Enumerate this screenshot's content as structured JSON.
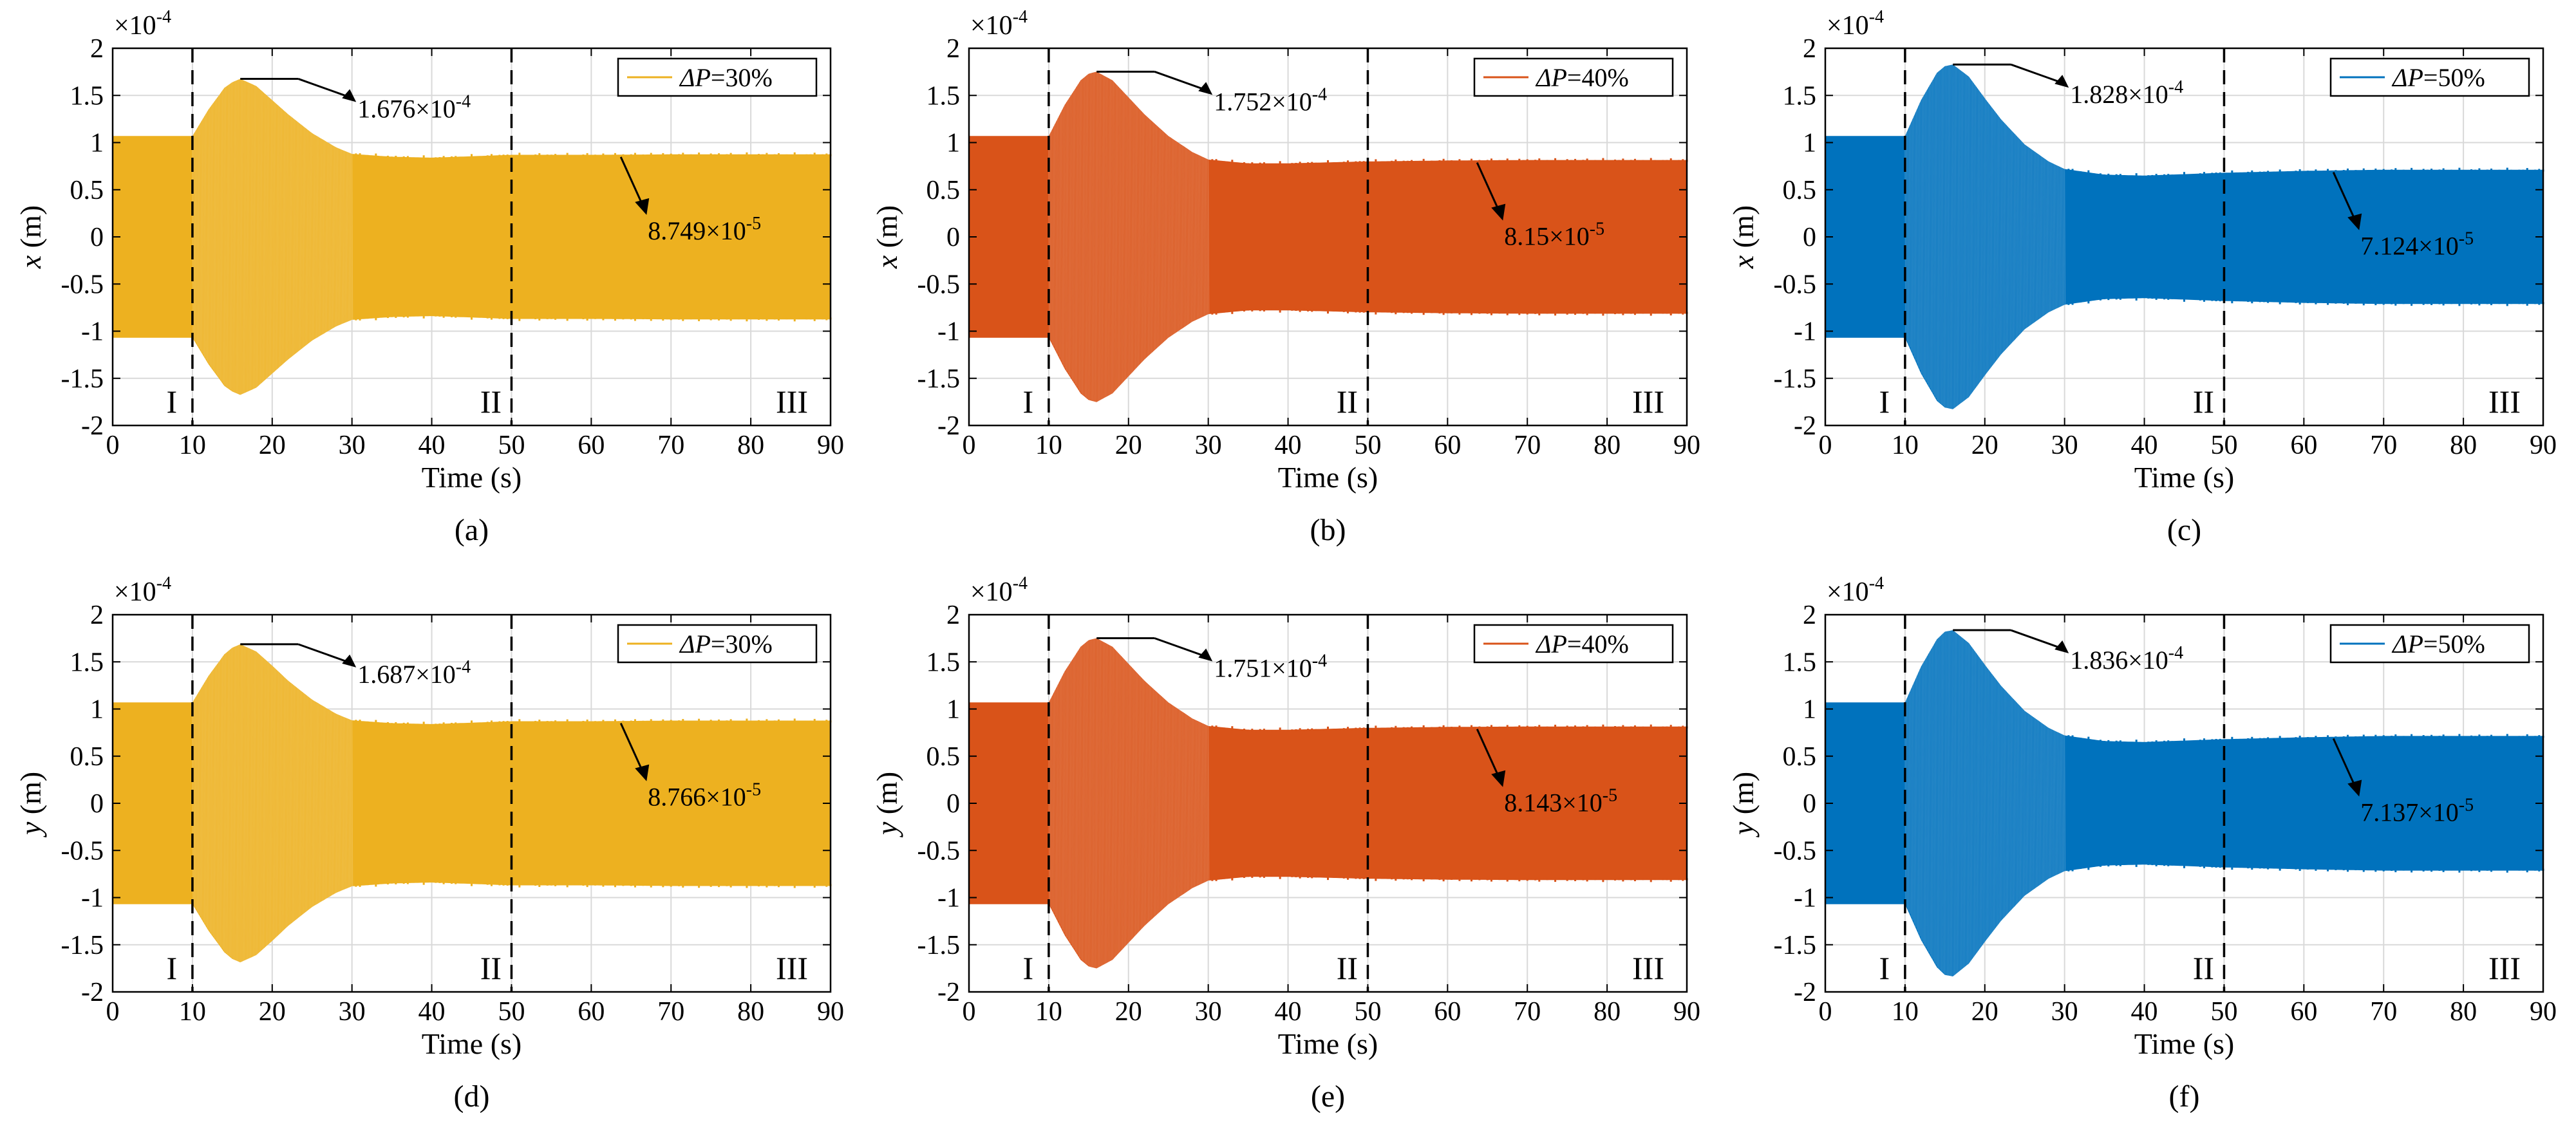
{
  "figure": {
    "panels": [
      {
        "label": "(a)",
        "color": "#EDB120",
        "chart_data": {
          "type": "area",
          "xlabel": "Time (s)",
          "ylabel_var": "x",
          "ylabel_unit": " (m)",
          "exponent_base": "×10",
          "exponent_power": "-4",
          "xlim": [
            0,
            90
          ],
          "ylim": [
            -2,
            2
          ],
          "xticks": [
            "0",
            "10",
            "20",
            "30",
            "40",
            "50",
            "60",
            "70",
            "80",
            "90"
          ],
          "yticks": [
            "2",
            "1.5",
            "1",
            "0.5",
            "0",
            "-0.5",
            "-1",
            "-1.5",
            "-2"
          ],
          "grid": true,
          "legend": {
            "prefix": "ΔP",
            "suffix": "=30%",
            "position": "top-right"
          },
          "region_labels": [
            "I",
            "II",
            "III"
          ],
          "vlines": [
            10,
            50
          ],
          "series": [
            {
              "x": [
                0,
                10,
                12,
                14,
                15,
                16,
                18,
                20,
                22,
                25,
                28,
                30,
                35,
                40,
                50,
                60,
                70,
                80,
                90
              ],
              "amplitude": [
                1.07,
                1.07,
                1.35,
                1.58,
                1.64,
                1.676,
                1.6,
                1.45,
                1.3,
                1.1,
                0.95,
                0.88,
                0.85,
                0.84,
                0.87,
                0.87,
                0.875,
                0.875,
                0.875
              ]
            }
          ],
          "annotations": [
            {
              "mant": "1.676",
              "base": "×10",
              "exp": "-4",
              "x": 16,
              "y": 1.676,
              "kind": "peak"
            },
            {
              "mant": "8.749",
              "base": "×10",
              "exp": "-5",
              "x": 70,
              "y": 0.8749,
              "kind": "steady"
            }
          ]
        }
      },
      {
        "label": "(b)",
        "color": "#D95319",
        "chart_data": {
          "type": "area",
          "xlabel": "Time (s)",
          "ylabel_var": "x",
          "ylabel_unit": " (m)",
          "exponent_base": "×10",
          "exponent_power": "-4",
          "xlim": [
            0,
            90
          ],
          "ylim": [
            -2,
            2
          ],
          "xticks": [
            "0",
            "10",
            "20",
            "30",
            "40",
            "50",
            "60",
            "70",
            "80",
            "90"
          ],
          "yticks": [
            "2",
            "1.5",
            "1",
            "0.5",
            "0",
            "-0.5",
            "-1",
            "-1.5",
            "-2"
          ],
          "grid": true,
          "legend": {
            "prefix": "ΔP",
            "suffix": "=40%",
            "position": "top-right"
          },
          "region_labels": [
            "I",
            "II",
            "III"
          ],
          "vlines": [
            10,
            50
          ],
          "series": [
            {
              "x": [
                0,
                10,
                12,
                14,
                15,
                16,
                18,
                20,
                22,
                25,
                28,
                30,
                35,
                40,
                50,
                60,
                70,
                80,
                90
              ],
              "amplitude": [
                1.07,
                1.07,
                1.4,
                1.66,
                1.73,
                1.752,
                1.66,
                1.48,
                1.3,
                1.07,
                0.9,
                0.82,
                0.78,
                0.78,
                0.8,
                0.81,
                0.815,
                0.815,
                0.815
              ]
            }
          ],
          "annotations": [
            {
              "mant": "1.752",
              "base": "×10",
              "exp": "-4",
              "x": 16,
              "y": 1.752,
              "kind": "peak"
            },
            {
              "mant": "8.15",
              "base": "×10",
              "exp": "-5",
              "x": 70,
              "y": 0.815,
              "kind": "steady"
            }
          ]
        }
      },
      {
        "label": "(c)",
        "color": "#0072BD",
        "chart_data": {
          "type": "area",
          "xlabel": "Time (s)",
          "ylabel_var": "x",
          "ylabel_unit": " (m)",
          "exponent_base": "×10",
          "exponent_power": "-4",
          "xlim": [
            0,
            90
          ],
          "ylim": [
            -2,
            2
          ],
          "xticks": [
            "0",
            "10",
            "20",
            "30",
            "40",
            "50",
            "60",
            "70",
            "80",
            "90"
          ],
          "yticks": [
            "2",
            "1.5",
            "1",
            "0.5",
            "0",
            "-0.5",
            "-1",
            "-1.5",
            "-2"
          ],
          "grid": true,
          "legend": {
            "prefix": "ΔP",
            "suffix": "=50%",
            "position": "top-right"
          },
          "region_labels": [
            "I",
            "II",
            "III"
          ],
          "vlines": [
            10,
            50
          ],
          "series": [
            {
              "x": [
                0,
                10,
                12,
                14,
                15,
                16,
                18,
                20,
                22,
                25,
                28,
                30,
                35,
                40,
                50,
                60,
                70,
                80,
                90
              ],
              "amplitude": [
                1.07,
                1.07,
                1.45,
                1.74,
                1.81,
                1.828,
                1.7,
                1.47,
                1.25,
                0.98,
                0.8,
                0.72,
                0.66,
                0.65,
                0.68,
                0.7,
                0.712,
                0.712,
                0.712
              ]
            }
          ],
          "annotations": [
            {
              "mant": "1.828",
              "base": "×10",
              "exp": "-4",
              "x": 16,
              "y": 1.828,
              "kind": "peak"
            },
            {
              "mant": "7.124",
              "base": "×10",
              "exp": "-5",
              "x": 70,
              "y": 0.7124,
              "kind": "steady"
            }
          ]
        }
      },
      {
        "label": "(d)",
        "color": "#EDB120",
        "chart_data": {
          "type": "area",
          "xlabel": "Time (s)",
          "ylabel_var": "y",
          "ylabel_unit": " (m)",
          "exponent_base": "×10",
          "exponent_power": "-4",
          "xlim": [
            0,
            90
          ],
          "ylim": [
            -2,
            2
          ],
          "xticks": [
            "0",
            "10",
            "20",
            "30",
            "40",
            "50",
            "60",
            "70",
            "80",
            "90"
          ],
          "yticks": [
            "2",
            "1.5",
            "1",
            "0.5",
            "0",
            "-0.5",
            "-1",
            "-1.5",
            "-2"
          ],
          "grid": true,
          "legend": {
            "prefix": "ΔP",
            "suffix": "=30%",
            "position": "top-right"
          },
          "region_labels": [
            "I",
            "II",
            "III"
          ],
          "vlines": [
            10,
            50
          ],
          "series": [
            {
              "x": [
                0,
                10,
                12,
                14,
                15,
                16,
                18,
                20,
                22,
                25,
                28,
                30,
                35,
                40,
                50,
                60,
                70,
                80,
                90
              ],
              "amplitude": [
                1.07,
                1.07,
                1.35,
                1.58,
                1.65,
                1.687,
                1.61,
                1.46,
                1.3,
                1.1,
                0.95,
                0.88,
                0.85,
                0.84,
                0.87,
                0.87,
                0.877,
                0.877,
                0.877
              ]
            }
          ],
          "annotations": [
            {
              "mant": "1.687",
              "base": "×10",
              "exp": "-4",
              "x": 16,
              "y": 1.687,
              "kind": "peak"
            },
            {
              "mant": "8.766",
              "base": "×10",
              "exp": "-5",
              "x": 70,
              "y": 0.8766,
              "kind": "steady"
            }
          ]
        }
      },
      {
        "label": "(e)",
        "color": "#D95319",
        "chart_data": {
          "type": "area",
          "xlabel": "Time (s)",
          "ylabel_var": "y",
          "ylabel_unit": " (m)",
          "exponent_base": "×10",
          "exponent_power": "-4",
          "xlim": [
            0,
            90
          ],
          "ylim": [
            -2,
            2
          ],
          "xticks": [
            "0",
            "10",
            "20",
            "30",
            "40",
            "50",
            "60",
            "70",
            "80",
            "90"
          ],
          "yticks": [
            "2",
            "1.5",
            "1",
            "0.5",
            "0",
            "-0.5",
            "-1",
            "-1.5",
            "-2"
          ],
          "grid": true,
          "legend": {
            "prefix": "ΔP",
            "suffix": "=40%",
            "position": "top-right"
          },
          "region_labels": [
            "I",
            "II",
            "III"
          ],
          "vlines": [
            10,
            50
          ],
          "series": [
            {
              "x": [
                0,
                10,
                12,
                14,
                15,
                16,
                18,
                20,
                22,
                25,
                28,
                30,
                35,
                40,
                50,
                60,
                70,
                80,
                90
              ],
              "amplitude": [
                1.07,
                1.07,
                1.4,
                1.66,
                1.73,
                1.751,
                1.66,
                1.48,
                1.3,
                1.07,
                0.9,
                0.82,
                0.78,
                0.78,
                0.8,
                0.81,
                0.814,
                0.814,
                0.814
              ]
            }
          ],
          "annotations": [
            {
              "mant": "1.751",
              "base": "×10",
              "exp": "-4",
              "x": 16,
              "y": 1.751,
              "kind": "peak"
            },
            {
              "mant": "8.143",
              "base": "×10",
              "exp": "-5",
              "x": 70,
              "y": 0.8143,
              "kind": "steady"
            }
          ]
        }
      },
      {
        "label": "(f)",
        "color": "#0072BD",
        "chart_data": {
          "type": "area",
          "xlabel": "Time (s)",
          "ylabel_var": "y",
          "ylabel_unit": " (m)",
          "exponent_base": "×10",
          "exponent_power": "-4",
          "xlim": [
            0,
            90
          ],
          "ylim": [
            -2,
            2
          ],
          "xticks": [
            "0",
            "10",
            "20",
            "30",
            "40",
            "50",
            "60",
            "70",
            "80",
            "90"
          ],
          "yticks": [
            "2",
            "1.5",
            "1",
            "0.5",
            "0",
            "-0.5",
            "-1",
            "-1.5",
            "-2"
          ],
          "grid": true,
          "legend": {
            "prefix": "ΔP",
            "suffix": "=50%",
            "position": "top-right"
          },
          "region_labels": [
            "I",
            "II",
            "III"
          ],
          "vlines": [
            10,
            50
          ],
          "series": [
            {
              "x": [
                0,
                10,
                12,
                14,
                15,
                16,
                18,
                20,
                22,
                25,
                28,
                30,
                35,
                40,
                50,
                60,
                70,
                80,
                90
              ],
              "amplitude": [
                1.07,
                1.07,
                1.45,
                1.74,
                1.82,
                1.836,
                1.7,
                1.47,
                1.25,
                0.98,
                0.8,
                0.72,
                0.66,
                0.65,
                0.68,
                0.7,
                0.714,
                0.714,
                0.714
              ]
            }
          ],
          "annotations": [
            {
              "mant": "1.836",
              "base": "×10",
              "exp": "-4",
              "x": 16,
              "y": 1.836,
              "kind": "peak"
            },
            {
              "mant": "7.137",
              "base": "×10",
              "exp": "-5",
              "x": 70,
              "y": 0.7137,
              "kind": "steady"
            }
          ]
        }
      }
    ]
  }
}
